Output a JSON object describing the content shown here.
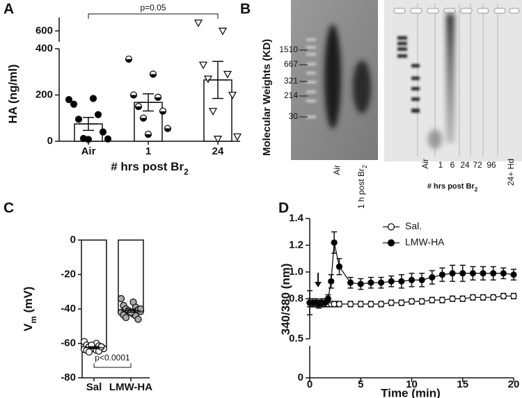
{
  "chart_data": [
    {
      "type": "bar_scatter",
      "panel_label": "A",
      "y_label": "HA (ng/ml)",
      "x_label": "# hrs post Br",
      "x_label_sub": "2",
      "annotation": "p=0.05",
      "categories": [
        "Air",
        "1",
        "24"
      ],
      "values": [
        75,
        168,
        265
      ],
      "errors": [
        28,
        37,
        80
      ],
      "points": [
        [
          180,
          185,
          160,
          115,
          95,
          40,
          12,
          10,
          8
        ],
        [
          355,
          290,
          200,
          190,
          150,
          130,
          100,
          55,
          30
        ],
        [
          630,
          600,
          330,
          290,
          270,
          200,
          130,
          20,
          10
        ]
      ],
      "point_markers": [
        "circle",
        "half",
        "triangle"
      ],
      "ylim": [
        0,
        400
      ],
      "ylim_upper": [
        560,
        650
      ],
      "yticks": [
        0,
        200,
        400,
        600
      ]
    },
    {
      "type": "bar_scatter",
      "panel_label": "C",
      "y_label": "V",
      "y_label_sub": "m",
      "y_label_suffix": " (mV)",
      "annotation": "p<0.0001",
      "categories": [
        "Sal",
        "LMW-HA"
      ],
      "values": [
        -62.5,
        -41
      ],
      "errors": [
        0.6,
        0.9
      ],
      "points": [
        [
          -59,
          -60,
          -61,
          -61.5,
          -62,
          -62,
          -62.5,
          -63,
          -63,
          -63.5,
          -64,
          -64,
          -64.5,
          -65,
          -62,
          -61
        ],
        [
          -34,
          -36,
          -38,
          -39,
          -40,
          -40.5,
          -41,
          -41.5,
          -42,
          -42,
          -43,
          -43.5,
          -44,
          -45,
          -46,
          -41,
          -40,
          -42
        ]
      ],
      "point_markers": [
        "circle-open",
        "circle-gray"
      ],
      "ylim": [
        -80,
        0
      ],
      "yticks": [
        0,
        -20,
        -40,
        -60,
        -80
      ]
    },
    {
      "type": "line",
      "panel_label": "D",
      "x_label": "Time (min)",
      "y_label": "340/380 (nm)",
      "x": [
        0,
        0.3,
        0.6,
        0.9,
        1.2,
        1.5,
        1.8,
        2.1,
        2.4,
        2.9,
        4,
        5,
        6,
        7,
        8,
        9,
        10,
        11,
        12,
        13,
        14,
        15,
        16,
        17,
        18,
        19,
        20
      ],
      "series": [
        {
          "name": "Sal.",
          "marker": "open",
          "values": [
            0.77,
            0.76,
            0.76,
            0.76,
            0.76,
            0.76,
            0.76,
            0.76,
            0.76,
            0.76,
            0.76,
            0.76,
            0.76,
            0.76,
            0.77,
            0.77,
            0.78,
            0.78,
            0.79,
            0.79,
            0.8,
            0.8,
            0.81,
            0.81,
            0.81,
            0.82,
            0.82
          ],
          "errors": [
            0.09,
            0.02,
            0.02,
            0.02,
            0.02,
            0.02,
            0.02,
            0.02,
            0.02,
            0.02,
            0.02,
            0.02,
            0.02,
            0.02,
            0.02,
            0.02,
            0.02,
            0.02,
            0.02,
            0.02,
            0.02,
            0.02,
            0.02,
            0.02,
            0.02,
            0.02,
            0.02
          ]
        },
        {
          "name": "LMW-HA",
          "marker": "filled",
          "values": [
            0.77,
            0.77,
            0.77,
            0.76,
            0.77,
            0.77,
            0.8,
            0.93,
            1.22,
            1.04,
            0.92,
            0.91,
            0.92,
            0.92,
            0.93,
            0.93,
            0.94,
            0.94,
            0.96,
            0.98,
            0.99,
            0.99,
            0.99,
            0.99,
            0.99,
            0.99,
            0.98
          ],
          "errors": [
            0.03,
            0.03,
            0.03,
            0.03,
            0.03,
            0.03,
            0.03,
            0.05,
            0.08,
            0.06,
            0.04,
            0.04,
            0.04,
            0.04,
            0.04,
            0.05,
            0.05,
            0.05,
            0.05,
            0.05,
            0.06,
            0.06,
            0.05,
            0.05,
            0.05,
            0.04,
            0.04
          ]
        }
      ],
      "xlim": [
        0,
        20
      ],
      "xticks": [
        0,
        5,
        10,
        15,
        20
      ],
      "ylim": [
        0.5,
        1.4
      ],
      "ylim_lower": [
        0,
        0.5
      ],
      "yticks": [
        0,
        0.5,
        0.8,
        {
          "value": 1,
          "label": "1.0"
        },
        1.2,
        1.4
      ]
    }
  ],
  "panel_b": {
    "panel_label": "B",
    "y_label": "Molecular Weights (KD)",
    "ladder": [
      "1510",
      "667",
      "321",
      "214",
      "30"
    ],
    "lanes_left": [
      "Air",
      {
        "text": "1 h post Br",
        "sub": "2"
      }
    ],
    "lanes_right": [
      "Air",
      "1",
      "6",
      "24",
      "72",
      "96",
      "24+ Hd"
    ],
    "x_label": "# hrs post Br",
    "x_label_sub": "2"
  }
}
